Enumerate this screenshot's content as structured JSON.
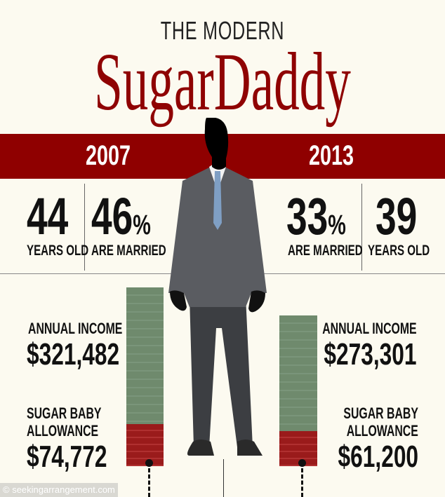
{
  "header": {
    "pretitle": "THE MODERN",
    "title": "SugarDaddy"
  },
  "years": {
    "left": "2007",
    "right": "2013"
  },
  "stats_2007": {
    "age": "44",
    "age_label": "YEARS OLD",
    "married": "46",
    "married_unit": "%",
    "married_label": "ARE MARRIED",
    "income_label": "ANNUAL INCOME",
    "income": "$321,482",
    "allowance_label_1": "SUGAR BABY",
    "allowance_label_2": "ALLOWANCE",
    "allowance": "$74,772"
  },
  "stats_2013": {
    "age": "39",
    "age_label": "YEARS OLD",
    "married": "33",
    "married_unit": "%",
    "married_label": "ARE MARRIED",
    "income_label": "ANNUAL INCOME",
    "income": "$273,301",
    "allowance_label_1": "SUGAR BABY",
    "allowance_label_2": "ALLOWANCE",
    "allowance": "$61,200"
  },
  "watermark": "© seekingarrangement.com",
  "colors": {
    "accent": "#8f0000",
    "background": "#fcfaf0",
    "money_green": "#6f8a6d",
    "money_red": "#9a1b1b"
  }
}
